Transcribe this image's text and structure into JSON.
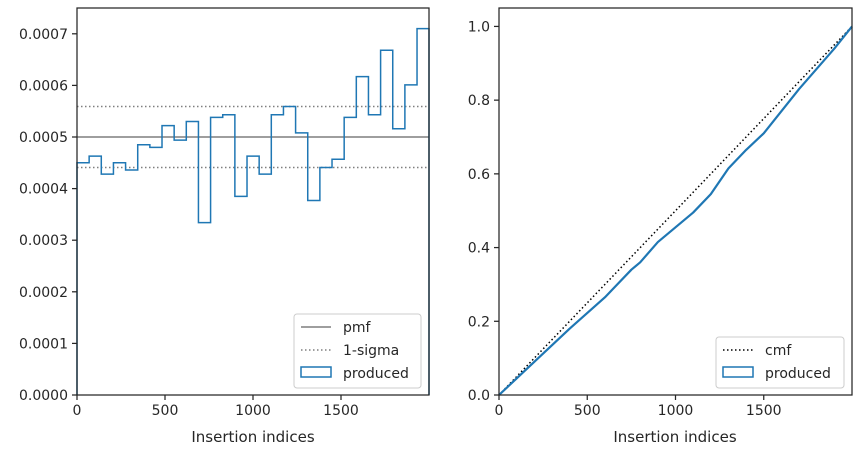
{
  "chart_data": [
    {
      "type": "step",
      "xlabel": "Insertion indices",
      "ylabel": "",
      "xlim": [
        0,
        2000
      ],
      "ylim": [
        0,
        0.00075
      ],
      "xticks": [
        "0",
        "500",
        "1000",
        "1500"
      ],
      "yticks": [
        "0.0000",
        "0.0001",
        "0.0002",
        "0.0003",
        "0.0004",
        "0.0005",
        "0.0006",
        "0.0007"
      ],
      "grid": false,
      "legend_position": "lower-right",
      "pmf": {
        "name": "pmf",
        "value": 0.0005,
        "color": "#7f7f7f"
      },
      "sigma": {
        "name": "1-sigma",
        "values": [
          0.000441,
          0.000559
        ],
        "color": "#7f7f7f"
      },
      "produced": {
        "name": "produced",
        "color": "#1f77b4",
        "bin_edges": [
          0,
          69,
          138,
          207,
          276,
          345,
          414,
          483,
          552,
          621,
          690,
          759,
          828,
          897,
          966,
          1035,
          1104,
          1173,
          1242,
          1311,
          1380,
          1449,
          1518,
          1587,
          1656,
          1725,
          1794,
          1863,
          1932,
          2000
        ],
        "values": [
          0.00045,
          0.000463,
          0.000428,
          0.00045,
          0.000436,
          0.000485,
          0.00048,
          0.000522,
          0.000494,
          0.00053,
          0.000334,
          0.000538,
          0.000543,
          0.000385,
          0.000463,
          0.000428,
          0.000543,
          0.000559,
          0.000508,
          0.000377,
          0.000441,
          0.000457,
          0.000538,
          0.000617,
          0.000543,
          0.000668,
          0.000516,
          0.000601,
          0.00071
        ]
      }
    },
    {
      "type": "line",
      "xlabel": "Insertion indices",
      "ylabel": "",
      "xlim": [
        0,
        2000
      ],
      "ylim": [
        0,
        1.05
      ],
      "xticks": [
        "0",
        "500",
        "1000",
        "1500"
      ],
      "yticks": [
        "0.0",
        "0.2",
        "0.4",
        "0.6",
        "0.8",
        "1.0"
      ],
      "grid": false,
      "legend_position": "lower-right",
      "cmf": {
        "name": "cmf",
        "x": [
          0,
          2000
        ],
        "y": [
          0,
          1
        ],
        "color": "#000000"
      },
      "produced": {
        "name": "produced",
        "color": "#1f77b4",
        "x": [
          0,
          200,
          400,
          600,
          650,
          750,
          800,
          900,
          1000,
          1100,
          1200,
          1300,
          1400,
          1500,
          1600,
          1700,
          1800,
          1900,
          2000
        ],
        "y": [
          0,
          0.09,
          0.18,
          0.265,
          0.29,
          0.34,
          0.36,
          0.415,
          0.455,
          0.495,
          0.545,
          0.615,
          0.665,
          0.71,
          0.77,
          0.83,
          0.885,
          0.94,
          1.0
        ]
      }
    }
  ]
}
